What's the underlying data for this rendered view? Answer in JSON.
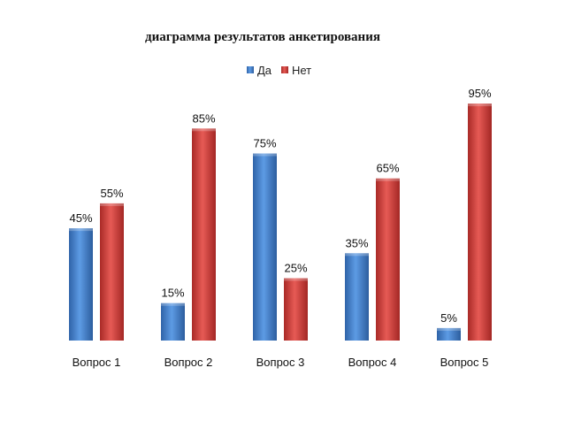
{
  "chart_data": {
    "type": "bar",
    "title": "диаграмма результатов анкетирования",
    "categories": [
      "Вопрос 1",
      "Вопрос 2",
      "Вопрос 3",
      "Вопрос 4",
      "Вопрос 5"
    ],
    "series": [
      {
        "name": "Да",
        "values": [
          45,
          15,
          75,
          35,
          5
        ],
        "labels": [
          "45%",
          "15%",
          "75%",
          "35%",
          "5%"
        ],
        "color": "#3f7fcf"
      },
      {
        "name": "Нет",
        "values": [
          55,
          85,
          25,
          65,
          95
        ],
        "labels": [
          "55%",
          "85%",
          "25%",
          "65%",
          "95%"
        ],
        "color": "#d43f3a"
      }
    ],
    "ylim": [
      0,
      100
    ],
    "xlabel": "",
    "ylabel": "",
    "grid": false,
    "legend_position": "top-center",
    "unit": "%"
  }
}
